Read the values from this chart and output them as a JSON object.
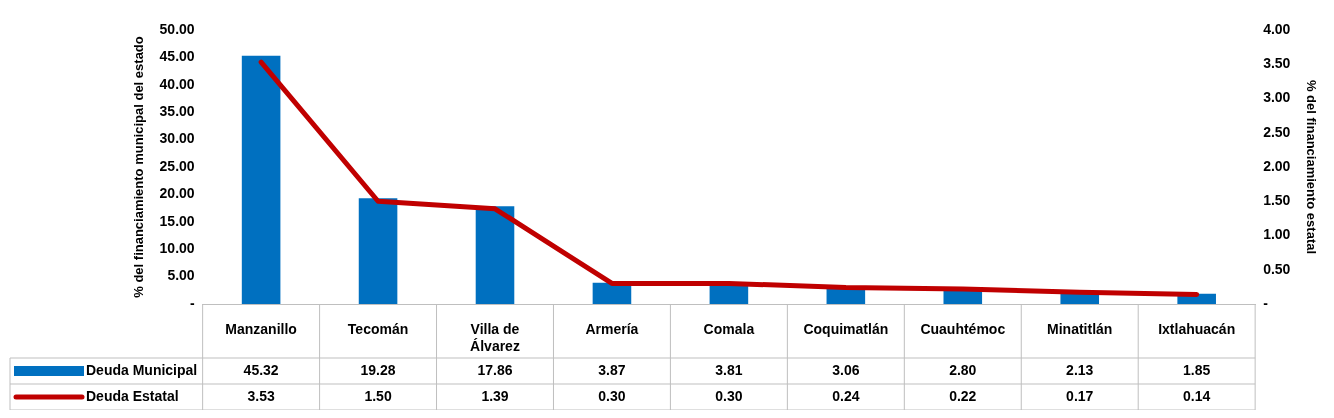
{
  "chart_data": {
    "type": "bar",
    "ylabel": "% del financiamiento municipal del estado",
    "y2label": "% del financiamiento estatal",
    "categories": [
      "Manzanillo",
      "Tecomán",
      "Villa de Álvarez",
      "Armería",
      "Comala",
      "Coquimatlán",
      "Cuauhtémoc",
      "Minatitlán",
      "Ixtlahuacán"
    ],
    "series": [
      {
        "name": "Deuda Municipal",
        "color": "#0070c0",
        "values": [
          45.32,
          19.28,
          17.86,
          3.87,
          3.81,
          3.06,
          2.8,
          2.13,
          1.85
        ],
        "value_labels": [
          "45.32",
          "19.28",
          "17.86",
          "3.87",
          "3.81",
          "3.06",
          "2.80",
          "2.13",
          "1.85"
        ]
      },
      {
        "name": "Deuda Estatal",
        "type": "line",
        "axis": "y2",
        "color": "#c00000",
        "values": [
          3.53,
          1.5,
          1.39,
          0.3,
          0.3,
          0.24,
          0.22,
          0.17,
          0.14
        ],
        "value_labels": [
          "3.53",
          "1.50",
          "1.39",
          "0.30",
          "0.30",
          "0.24",
          "0.22",
          "0.17",
          "0.14"
        ]
      }
    ],
    "ylim": [
      0,
      50
    ],
    "yticks": [
      {
        "value": 0,
        "label": "-"
      },
      {
        "value": 5,
        "label": "5.00"
      },
      {
        "value": 10,
        "label": "10.00"
      },
      {
        "value": 15,
        "label": "15.00"
      },
      {
        "value": 20,
        "label": "20.00"
      },
      {
        "value": 25,
        "label": "25.00"
      },
      {
        "value": 30,
        "label": "30.00"
      },
      {
        "value": 35,
        "label": "35.00"
      },
      {
        "value": 40,
        "label": "40.00"
      },
      {
        "value": 45,
        "label": "45.00"
      },
      {
        "value": 50,
        "label": "50.00"
      }
    ],
    "y2lim": [
      0,
      4
    ],
    "y2ticks": [
      {
        "value": 0,
        "label": "-"
      },
      {
        "value": 0.5,
        "label": "0.50"
      },
      {
        "value": 1,
        "label": "1.00"
      },
      {
        "value": 1.5,
        "label": "1.50"
      },
      {
        "value": 2,
        "label": "2.00"
      },
      {
        "value": 2.5,
        "label": "2.50"
      },
      {
        "value": 3,
        "label": "3.00"
      },
      {
        "value": 3.5,
        "label": "3.50"
      },
      {
        "value": 4,
        "label": "4.00"
      }
    ],
    "legend": "bottom",
    "marker": "none"
  }
}
